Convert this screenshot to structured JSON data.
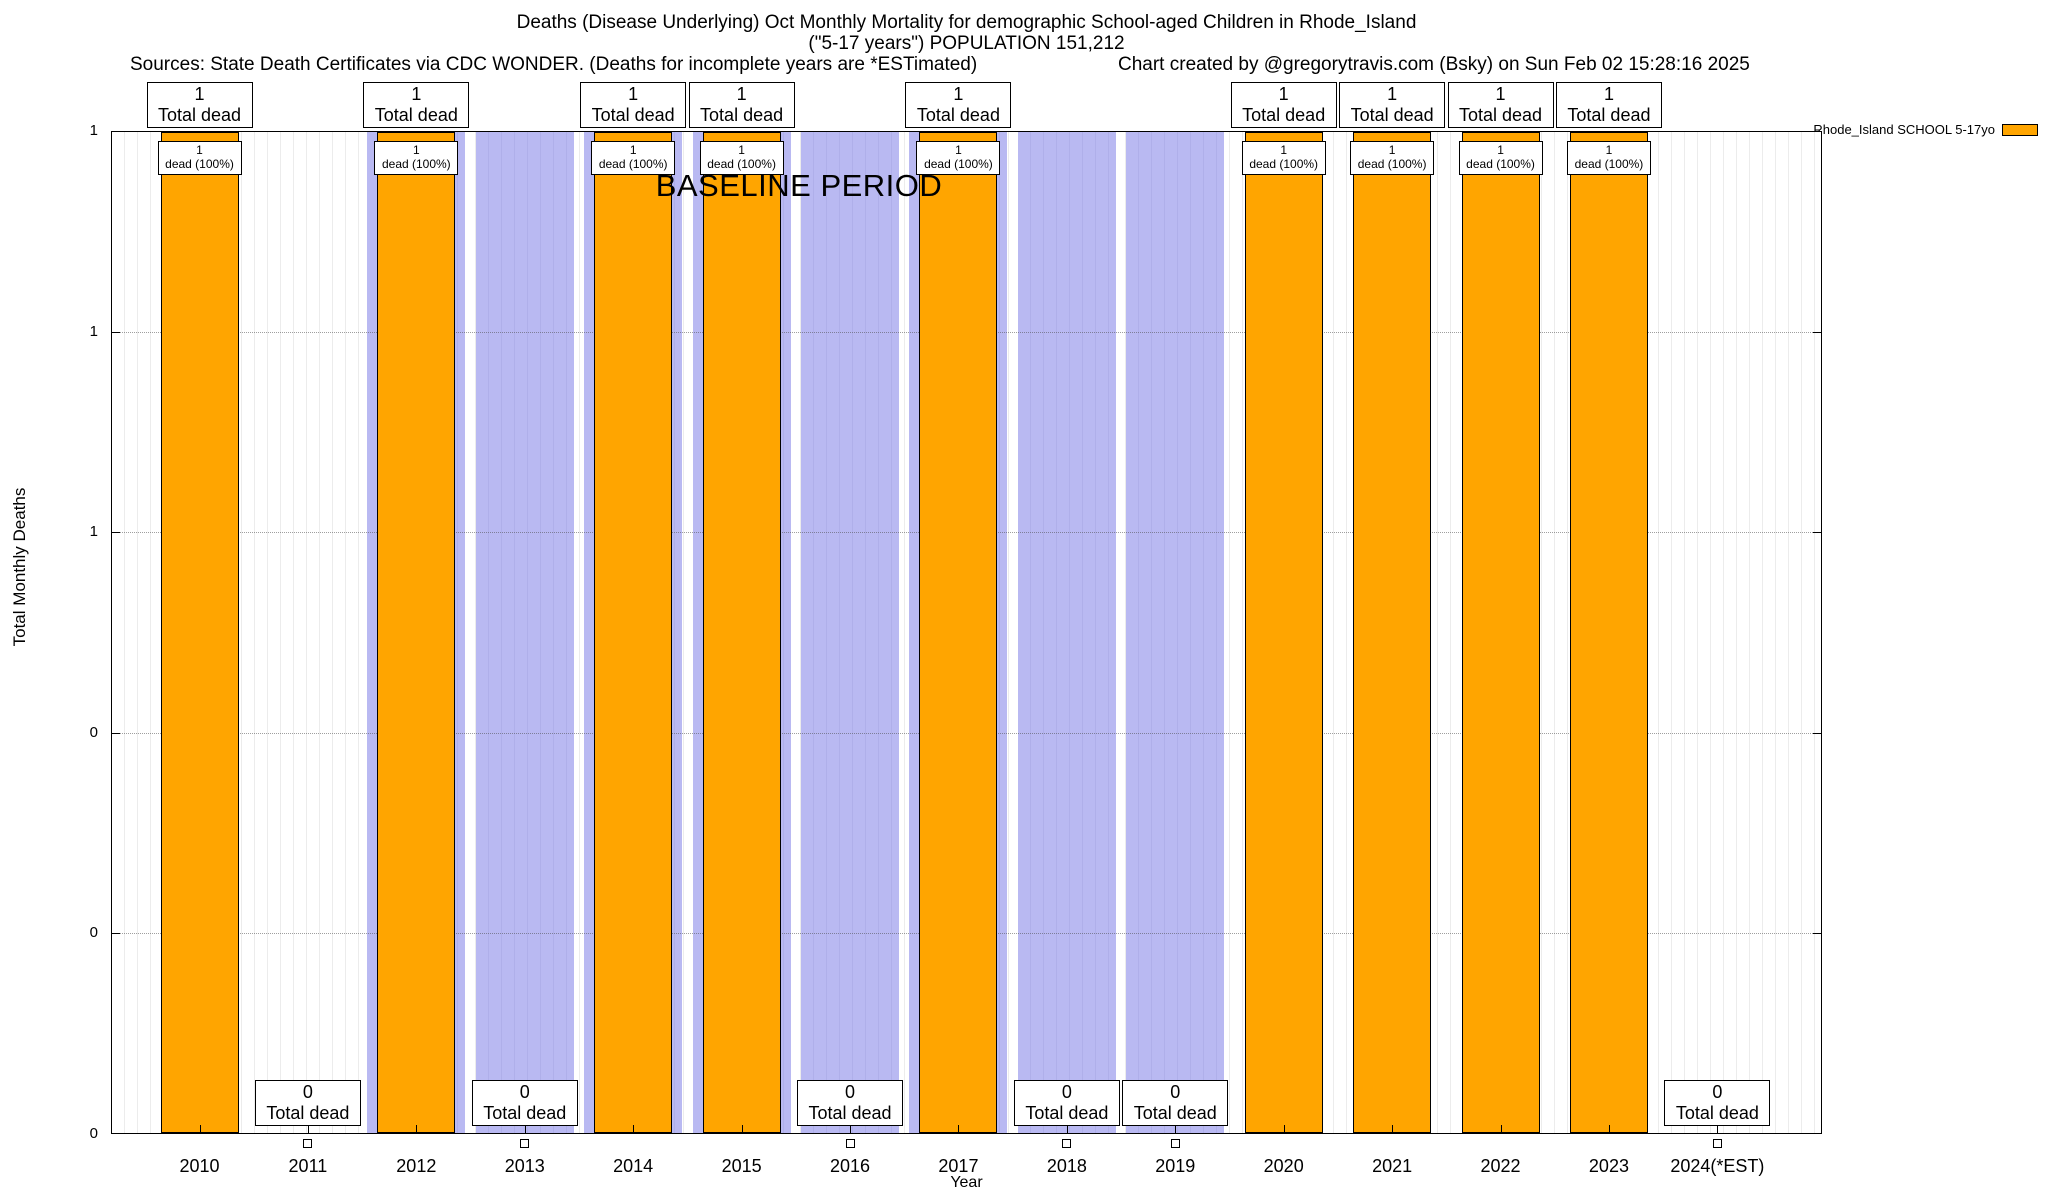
{
  "header": {
    "title_line1": "Deaths (Disease Underlying) Oct Monthly Mortality for demographic School-aged Children in Rhode_Island",
    "title_line2": "(\"5-17 years\") POPULATION 151,212",
    "sources": "Sources: State Death Certificates via CDC WONDER. (Deaths for incomplete years are *ESTimated)",
    "credit": "Chart created by @gregorytravis.com (Bsky) on Sun Feb 02 15:28:16 2025"
  },
  "legend": {
    "label": "Rhode_Island SCHOOL 5-17yo",
    "swatch_color": "#FFA500"
  },
  "axes": {
    "xlabel": "Year",
    "ylabel": "Total Monthly Deaths",
    "yticks_top_to_bottom": [
      "1",
      "1",
      "1",
      "0",
      "0",
      "0"
    ]
  },
  "annotations": {
    "baseline_label": "BASELINE PERIOD",
    "total_dead_label": "Total dead",
    "dead_pct_label": "dead (100%)"
  },
  "chart_data": {
    "type": "bar",
    "title": "Deaths (Disease Underlying) Oct Monthly Mortality for demographic School-aged Children in Rhode_Island (\"5-17 years\") POPULATION 151,212",
    "xlabel": "Year",
    "ylabel": "Total Monthly Deaths",
    "ylim": [
      0,
      1
    ],
    "grid": "horizontal",
    "legend_position": "top-right-outside",
    "categories": [
      "2010",
      "2011",
      "2012",
      "2013",
      "2014",
      "2015",
      "2016",
      "2017",
      "2018",
      "2019",
      "2020",
      "2021",
      "2022",
      "2023",
      "2024(*EST)"
    ],
    "series": [
      {
        "name": "Rhode_Island SCHOOL 5-17yo",
        "values": [
          1,
          0,
          1,
          0,
          1,
          1,
          0,
          1,
          0,
          0,
          1,
          1,
          1,
          1,
          0
        ]
      }
    ],
    "bar_color": "#FFA500",
    "bar_value_caption": "dead (100%)",
    "baseline_region": {
      "label": "BASELINE PERIOD",
      "start": "2012",
      "end": "2019",
      "color": "#b9b9f2"
    }
  }
}
